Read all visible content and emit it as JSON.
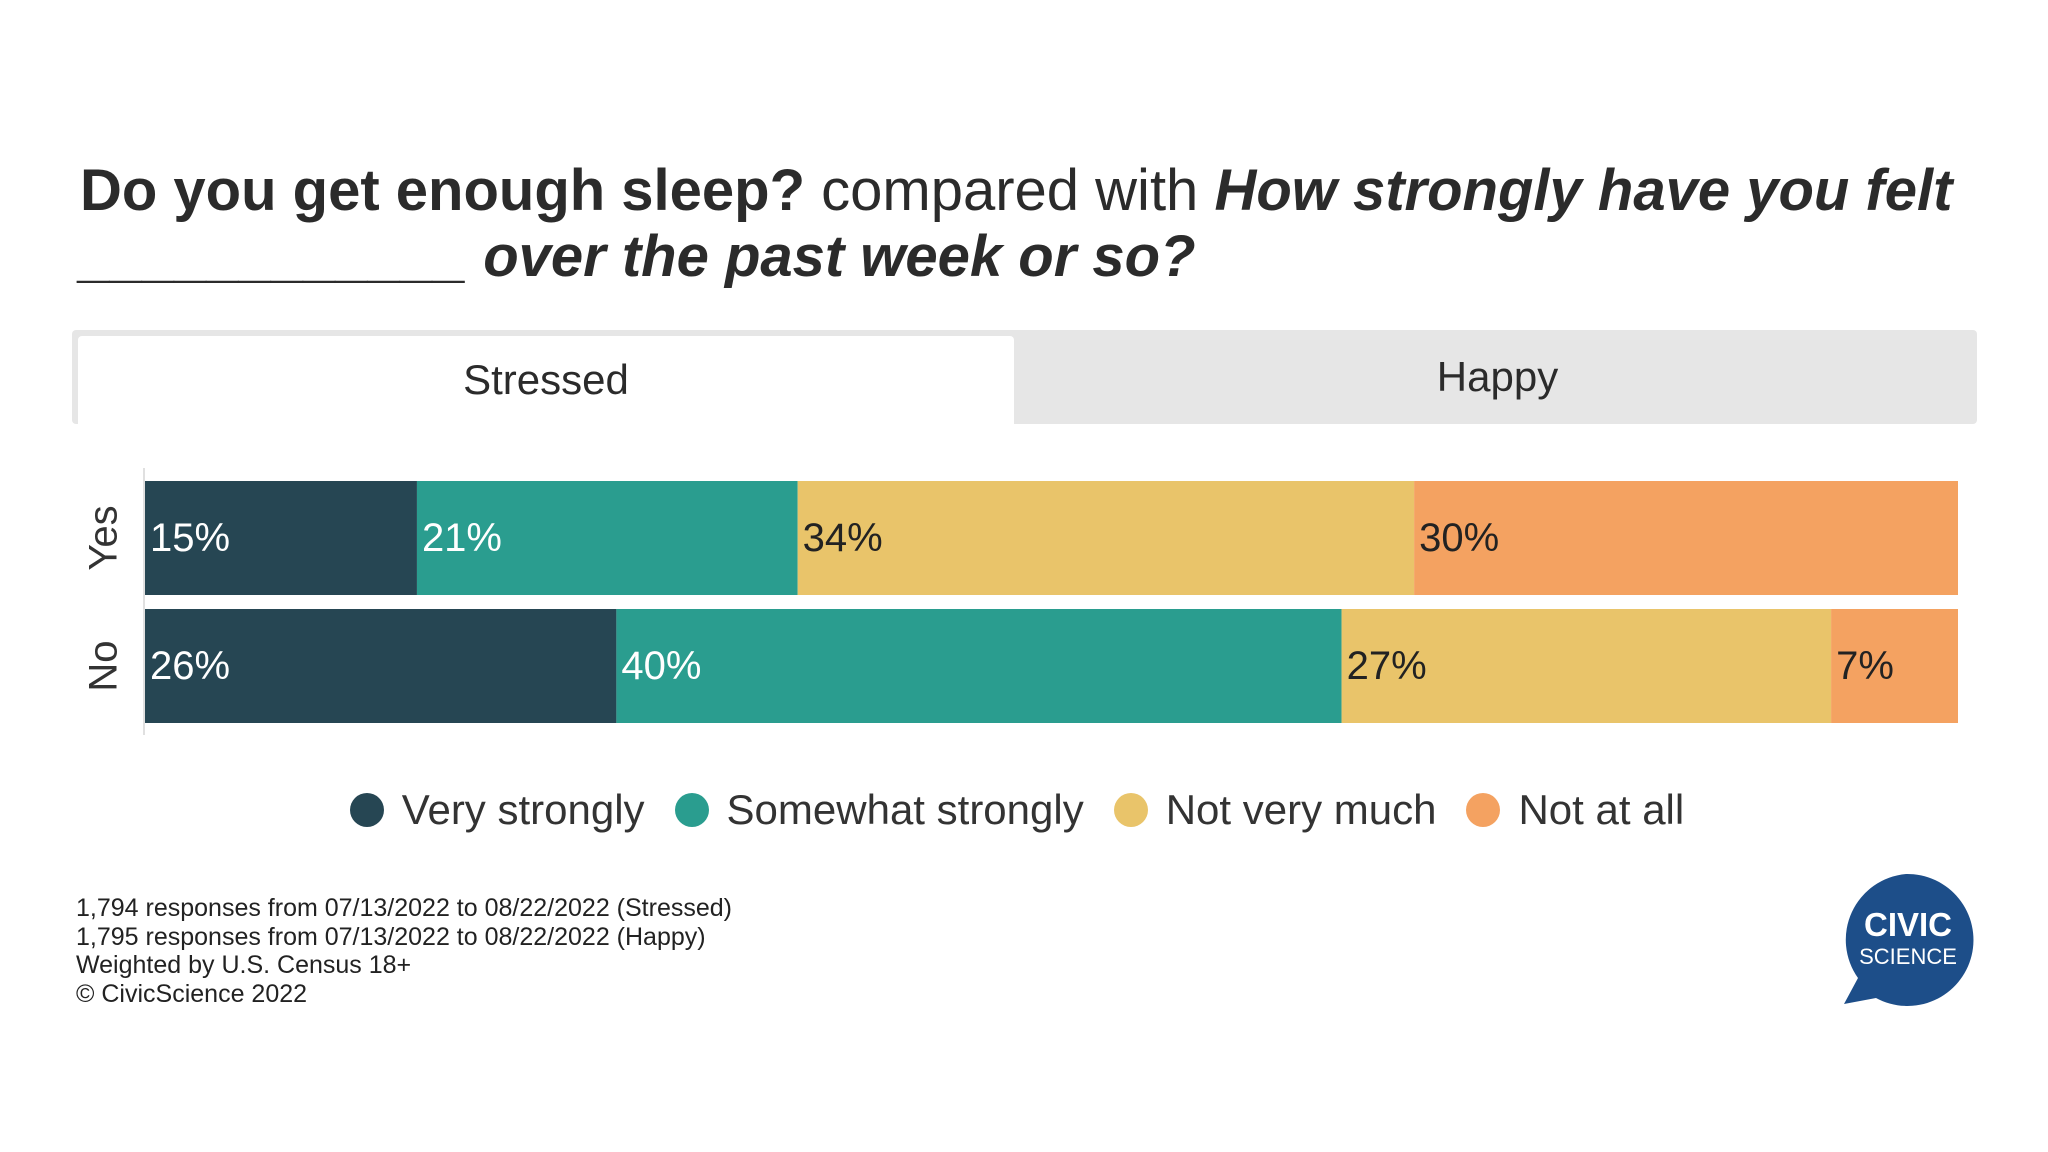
{
  "title": {
    "part1": "Do you get enough sleep?",
    "part2": " compared with ",
    "part3": "How strongly have you felt",
    "part4": "____________ over the past week or so?"
  },
  "tabs": [
    {
      "label": "Stressed",
      "active": true
    },
    {
      "label": "Happy",
      "active": false
    }
  ],
  "chart_data": {
    "type": "bar",
    "orientation": "horizontal",
    "stacked": true,
    "categories": [
      "Yes",
      "No"
    ],
    "series": [
      {
        "name": "Very strongly",
        "color": "#264653",
        "values": [
          15,
          26
        ],
        "labels": [
          "15%",
          "26%"
        ]
      },
      {
        "name": "Somewhat strongly",
        "color": "#2a9d8f",
        "values": [
          21,
          40
        ],
        "labels": [
          "21%",
          "40%"
        ]
      },
      {
        "name": "Not very much",
        "color": "#e9c46a",
        "values": [
          34,
          27
        ],
        "labels": [
          "34%",
          "27%"
        ]
      },
      {
        "name": "Not at all",
        "color": "#f4a261",
        "values": [
          30,
          7
        ],
        "labels": [
          "30%",
          "7%"
        ]
      }
    ],
    "xlim": [
      0,
      100
    ],
    "legend_position": "bottom"
  },
  "notes": [
    "1,794 responses from 07/13/2022 to 08/22/2022 (Stressed)",
    "1,795 responses from 07/13/2022 to 08/22/2022 (Happy)",
    "Weighted by U.S. Census 18+",
    "© CivicScience 2022"
  ],
  "logo": {
    "line1": "CIVIC",
    "line2": "SCIENCE",
    "color": "#1d4e89"
  }
}
